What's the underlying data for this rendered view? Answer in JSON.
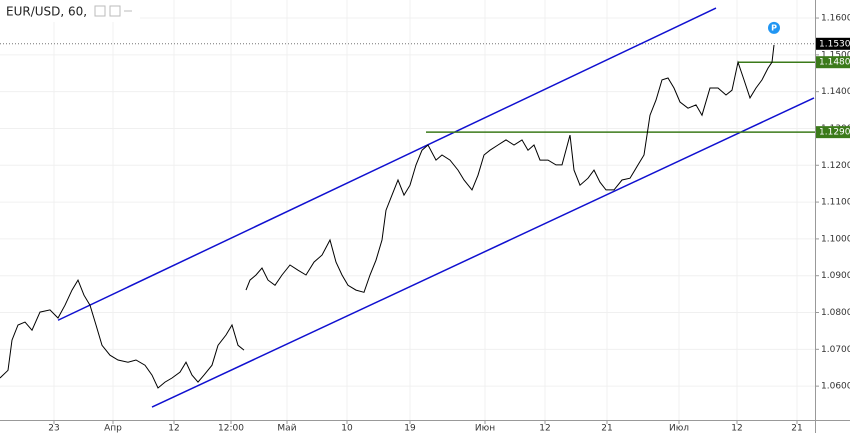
{
  "chart_data": {
    "type": "line",
    "title": "EUR/USD, 60,",
    "marker": "P",
    "xlim": [
      0,
      815
    ],
    "ylim": [
      1.0508,
      1.1649
    ],
    "xticks": [
      {
        "value": 54,
        "label": "23"
      },
      {
        "value": 113,
        "label": "Апр"
      },
      {
        "value": 174,
        "label": "12"
      },
      {
        "value": 231,
        "label": "12:00"
      },
      {
        "value": 287,
        "label": "Май"
      },
      {
        "value": 347,
        "label": "10"
      },
      {
        "value": 410,
        "label": "19"
      },
      {
        "value": 485,
        "label": "Июн"
      },
      {
        "value": 545,
        "label": "12"
      },
      {
        "value": 607,
        "label": "21"
      },
      {
        "value": 679,
        "label": "Июл"
      },
      {
        "value": 737,
        "label": "12"
      },
      {
        "value": 797,
        "label": "21"
      }
    ],
    "yticks": [
      {
        "value": 1.16,
        "label": "1.1600"
      },
      {
        "value": 1.15,
        "label": "1.1500"
      },
      {
        "value": 1.14,
        "label": "1.1400"
      },
      {
        "value": 1.13,
        "label": "1.1300"
      },
      {
        "value": 1.12,
        "label": "1.1200"
      },
      {
        "value": 1.11,
        "label": "1.1100"
      },
      {
        "value": 1.1,
        "label": "1.1000"
      },
      {
        "value": 1.09,
        "label": "1.0900"
      },
      {
        "value": 1.08,
        "label": "1.0800"
      },
      {
        "value": 1.07,
        "label": "1.0700"
      },
      {
        "value": 1.06,
        "label": "1.0600"
      }
    ],
    "grid": true,
    "series": [
      {
        "name": "EUR/USD",
        "color": "#000000",
        "x": [
          0,
          8,
          12,
          18,
          25,
          32,
          40,
          50,
          58,
          65,
          72,
          78,
          84,
          90,
          96,
          102,
          110,
          118,
          128,
          136,
          145,
          152,
          158,
          165,
          172,
          180,
          186,
          192,
          198,
          204,
          212,
          218,
          226,
          232,
          238,
          244,
          245,
          246,
          250,
          256,
          262,
          268,
          275,
          282,
          290,
          298,
          306,
          314,
          322,
          330,
          336,
          342,
          348,
          356,
          364,
          370,
          376,
          382,
          386,
          392,
          398,
          404,
          410,
          416,
          422,
          428,
          436,
          442,
          450,
          458,
          464,
          472,
          478,
          484,
          490,
          498,
          506,
          514,
          522,
          528,
          534,
          540,
          548,
          556,
          562,
          570,
          574,
          580,
          588,
          594,
          600,
          606,
          614,
          622,
          630,
          638,
          644,
          650,
          656,
          662,
          668,
          674,
          680,
          688,
          696,
          702,
          710,
          718,
          726,
          732,
          738,
          744,
          750,
          756,
          762,
          768,
          772,
          774
        ],
        "values": [
          1.0622,
          1.0643,
          1.0725,
          1.0766,
          1.0774,
          1.0752,
          1.0801,
          1.0807,
          1.0785,
          1.082,
          1.0861,
          1.0888,
          1.0847,
          1.082,
          1.0766,
          1.0711,
          1.0684,
          1.0671,
          1.0665,
          1.0671,
          1.0657,
          1.063,
          1.0595,
          1.0611,
          1.0622,
          1.0638,
          1.0665,
          1.063,
          1.0611,
          1.063,
          1.0657,
          1.0711,
          1.0739,
          1.0766,
          1.0711,
          1.0698,
          null,
          1.0861,
          1.0888,
          1.0902,
          1.0921,
          1.0888,
          1.0874,
          1.0902,
          1.0929,
          1.0915,
          1.0902,
          1.0937,
          1.0956,
          1.0997,
          1.0937,
          1.0902,
          1.0874,
          1.0861,
          1.0855,
          1.0902,
          1.0942,
          1.0997,
          1.1078,
          1.1119,
          1.116,
          1.1119,
          1.1146,
          1.1201,
          1.1241,
          1.1255,
          1.1214,
          1.1228,
          1.1214,
          1.1187,
          1.116,
          1.1133,
          1.1173,
          1.1228,
          1.1241,
          1.1255,
          1.1269,
          1.1255,
          1.1269,
          1.1241,
          1.1255,
          1.1214,
          1.1214,
          1.1201,
          1.1201,
          1.1282,
          1.1187,
          1.1146,
          1.1165,
          1.1187,
          1.1154,
          1.1133,
          1.1133,
          1.116,
          1.1165,
          1.1201,
          1.1228,
          1.1336,
          1.1377,
          1.1432,
          1.1437,
          1.141,
          1.1372,
          1.1355,
          1.1364,
          1.1336,
          1.141,
          1.141,
          1.1391,
          1.1404,
          1.148,
          1.1432,
          1.1383,
          1.141,
          1.1432,
          1.1464,
          1.148,
          1.1527
        ]
      }
    ],
    "trendlines": [
      {
        "color": "#1010d0",
        "x": [
          58,
          716
        ],
        "y": [
          1.0779,
          1.1627
        ]
      },
      {
        "color": "#1010d0",
        "x": [
          152,
          814
        ],
        "y": [
          1.0543,
          1.1383
        ]
      }
    ],
    "levels": [
      {
        "value": 1.129,
        "label": "1.1290",
        "color": "#3b7a1a",
        "x_start": 426
      },
      {
        "value": 1.148,
        "label": "1.1480",
        "color": "#3b7a1a",
        "x_start": 738
      }
    ],
    "last_price": {
      "value": 1.153,
      "label": "1.1530",
      "color": "#000000"
    }
  }
}
